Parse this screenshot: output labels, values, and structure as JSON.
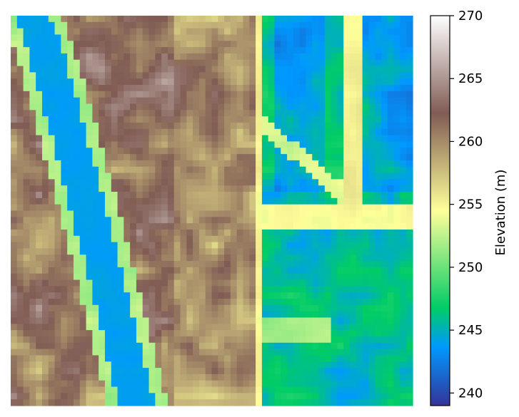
{
  "chart_data": {
    "type": "heatmap",
    "title": "",
    "colorbar": {
      "label": "Elevation (m)",
      "range": [
        239,
        270
      ],
      "ticks": [
        240,
        245,
        250,
        255,
        260,
        265,
        270
      ],
      "colormap": "terrain"
    },
    "grid": false,
    "axes_visible": false,
    "rows": 62,
    "cols": 64,
    "regions": {
      "river": 244,
      "riverbank": 252,
      "left_highland": 262,
      "central_ridge": 262,
      "right_lowland": 246,
      "hedgerows": 255
    }
  }
}
